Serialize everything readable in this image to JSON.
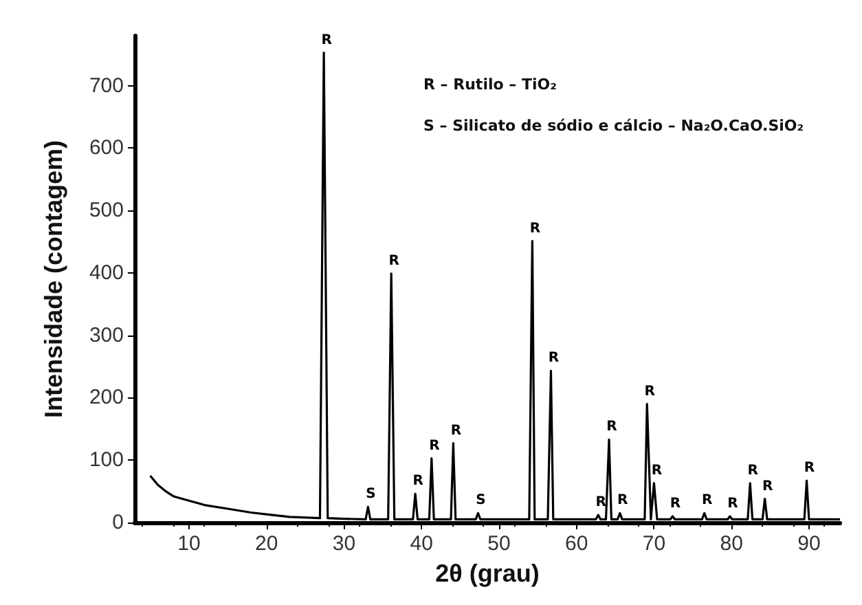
{
  "chart_data": {
    "type": "line",
    "xlabel": "2θ (grau)",
    "ylabel": "Intensidade (contagem)",
    "xlim": [
      3,
      94
    ],
    "xticks": [
      10,
      20,
      30,
      40,
      50,
      60,
      70,
      80,
      90
    ],
    "ylim": [
      0,
      780
    ],
    "yticks": [
      0,
      100,
      200,
      300,
      400,
      500,
      600,
      700
    ],
    "grid": false,
    "marker": "none",
    "line_style": "solid",
    "series": [
      {
        "color": "#000000",
        "x": [
          5,
          6,
          7,
          8,
          10,
          12,
          15,
          18,
          20,
          23,
          26.9,
          27.4,
          27.9,
          30,
          32.8,
          33.1,
          33.4,
          35.7,
          36.1,
          36.5,
          38.9,
          39.2,
          39.5,
          41.0,
          41.3,
          41.6,
          43.8,
          44.1,
          44.4,
          47.0,
          47.3,
          47.6,
          53.9,
          54.3,
          54.6,
          56.3,
          56.7,
          57.0,
          62.5,
          62.8,
          63.1,
          63.8,
          64.2,
          64.5,
          65.3,
          65.6,
          65.9,
          68.8,
          69.1,
          69.6,
          70.0,
          70.4,
          72.1,
          72.4,
          72.7,
          76.2,
          76.5,
          76.8,
          79.5,
          79.8,
          80.1,
          82.1,
          82.4,
          82.7,
          84.0,
          84.3,
          84.6,
          89.4,
          89.7,
          90.0,
          94
        ],
        "values": [
          75,
          60,
          50,
          42,
          35,
          28,
          22,
          16,
          13,
          9,
          7,
          753,
          7,
          6,
          5,
          25,
          5,
          5,
          399,
          5,
          5,
          46,
          5,
          5,
          103,
          5,
          5,
          127,
          5,
          5,
          15,
          5,
          5,
          451,
          5,
          5,
          243,
          5,
          5,
          12,
          5,
          5,
          133,
          5,
          5,
          15,
          5,
          5,
          190,
          5,
          63,
          5,
          5,
          10,
          5,
          5,
          15,
          5,
          5,
          10,
          5,
          5,
          63,
          5,
          5,
          38,
          5,
          5,
          67,
          5,
          5
        ]
      }
    ],
    "annotations": [
      {
        "text": "R",
        "x": 27.4,
        "y": 753
      },
      {
        "text": "S",
        "x": 33.1,
        "y": 25
      },
      {
        "text": "R",
        "x": 36.1,
        "y": 399
      },
      {
        "text": "R",
        "x": 39.2,
        "y": 46
      },
      {
        "text": "R",
        "x": 41.3,
        "y": 103
      },
      {
        "text": "R",
        "x": 44.1,
        "y": 127
      },
      {
        "text": "S",
        "x": 47.3,
        "y": 15
      },
      {
        "text": "R",
        "x": 54.3,
        "y": 451
      },
      {
        "text": "R",
        "x": 56.7,
        "y": 243
      },
      {
        "text": "R",
        "x": 62.8,
        "y": 12
      },
      {
        "text": "R",
        "x": 64.2,
        "y": 133
      },
      {
        "text": "R",
        "x": 65.6,
        "y": 15
      },
      {
        "text": "R",
        "x": 69.1,
        "y": 190
      },
      {
        "text": "R",
        "x": 70.0,
        "y": 63
      },
      {
        "text": "R",
        "x": 72.4,
        "y": 10
      },
      {
        "text": "R",
        "x": 76.5,
        "y": 15
      },
      {
        "text": "R",
        "x": 79.8,
        "y": 10
      },
      {
        "text": "R",
        "x": 82.4,
        "y": 63
      },
      {
        "text": "R",
        "x": 84.3,
        "y": 38
      },
      {
        "text": "R",
        "x": 89.7,
        "y": 67
      },
      "R – Rutilo – TiO₂",
      "S – Silicato de sódio e cálcio – Na₂O.CaO.SiO₂"
    ]
  }
}
